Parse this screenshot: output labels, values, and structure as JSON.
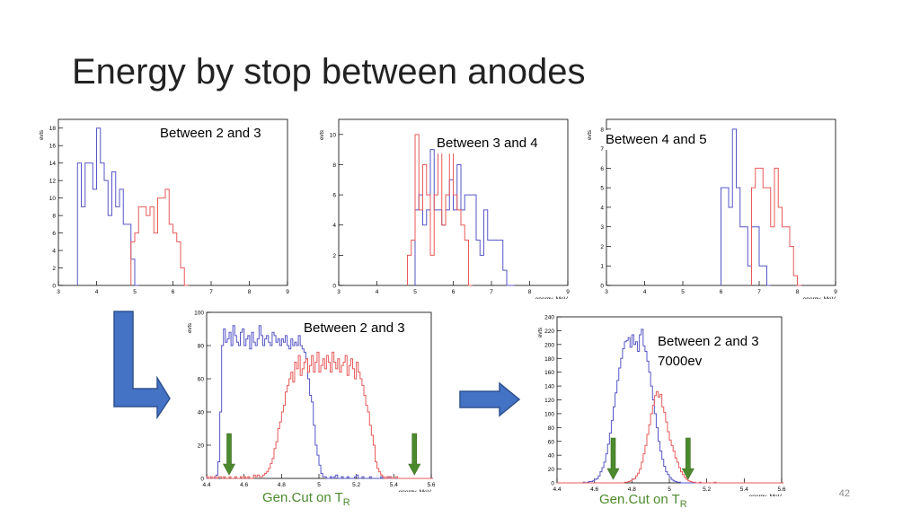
{
  "slide": {
    "title": "Energy by stop between anodes",
    "page_number": "42",
    "gencut_text": "Gen.Cut on T",
    "gencut_sub": "R"
  },
  "colors": {
    "blue": "#5656c8",
    "red": "#e85a5a",
    "arrow_blue": "#4472c4",
    "arrow_green": "#4c8a2e"
  },
  "chart_data": [
    {
      "id": "p1",
      "type": "histogram",
      "title": "Between 2 and 3",
      "ylabel": "evts",
      "xlabel": "",
      "xlim": [
        3,
        9
      ],
      "ylim": [
        0,
        19
      ],
      "xticks": [
        "3",
        "4",
        "5",
        "6",
        "7",
        "8",
        "9"
      ],
      "yticks": [
        "0",
        "2",
        "4",
        "6",
        "8",
        "10",
        "12",
        "14",
        "16",
        "18"
      ],
      "bin_width": 0.1,
      "series": [
        {
          "name": "blue",
          "x0": 3.5,
          "values": [
            14,
            9,
            14,
            14,
            11,
            18,
            14,
            12,
            8,
            13,
            9,
            11,
            7,
            7,
            3,
            0
          ]
        },
        {
          "name": "red",
          "x0": 4.9,
          "values": [
            5,
            6,
            9,
            9,
            8,
            9,
            6,
            10,
            10,
            11,
            7,
            6,
            5,
            2,
            0
          ]
        }
      ]
    },
    {
      "id": "p2",
      "type": "histogram",
      "title": "Between 3 and 4",
      "ylabel": "evts",
      "xlabel": "energy, MeV",
      "xlim": [
        3,
        9
      ],
      "ylim": [
        0,
        11
      ],
      "xticks": [
        "3",
        "4",
        "5",
        "6",
        "7",
        "8",
        "9"
      ],
      "yticks": [
        "0",
        "2",
        "4",
        "6",
        "8",
        "10"
      ],
      "bin_width": 0.1,
      "series": [
        {
          "name": "blue",
          "x0": 5.0,
          "values": [
            5,
            6,
            4,
            5,
            9,
            5,
            5,
            4,
            5,
            7,
            5,
            8,
            5,
            6,
            6,
            6,
            3,
            2,
            5,
            3,
            3,
            3,
            3,
            1,
            0,
            0
          ]
        },
        {
          "name": "red",
          "x0": 4.8,
          "values": [
            2,
            3,
            10,
            5,
            8,
            6,
            2,
            6,
            10,
            4,
            6,
            9,
            6,
            5,
            4,
            3,
            0
          ]
        }
      ]
    },
    {
      "id": "p3",
      "type": "histogram",
      "title": "Between 4 and 5",
      "ylabel": "evts",
      "xlabel": "energy, MeV",
      "xlim": [
        3,
        9
      ],
      "ylim": [
        0,
        8.5
      ],
      "xticks": [
        "3",
        "4",
        "5",
        "6",
        "7",
        "8",
        "9"
      ],
      "yticks": [
        "0",
        "1",
        "2",
        "3",
        "4",
        "5",
        "6",
        "7",
        "8"
      ],
      "bin_width": 0.1,
      "series": [
        {
          "name": "blue",
          "x0": 6.0,
          "values": [
            5,
            5,
            4,
            8,
            5,
            3,
            3,
            1,
            3,
            3,
            1,
            1,
            0
          ]
        },
        {
          "name": "red",
          "x0": 6.8,
          "values": [
            5,
            6,
            6,
            5,
            5,
            3,
            6,
            4,
            3,
            3,
            2,
            0.5,
            0
          ]
        }
      ]
    },
    {
      "id": "p4",
      "type": "histogram",
      "title": "Between 2 and 3",
      "ylabel": "evts",
      "xlabel": "energy, MeV",
      "xlim": [
        4.4,
        5.6
      ],
      "ylim": [
        0,
        100
      ],
      "xticks": [
        "4.4",
        "4.6",
        "4.8",
        "5",
        "5.2",
        "5.4",
        "5.6"
      ],
      "yticks": [
        "0",
        "20",
        "40",
        "60",
        "80",
        "100"
      ],
      "bin_width": 0.01,
      "series": [
        {
          "name": "blue",
          "x0": 4.4,
          "values": [
            0,
            0,
            0,
            0,
            0,
            2,
            10,
            40,
            80,
            90,
            82,
            84,
            88,
            80,
            92,
            86,
            82,
            80,
            88,
            90,
            80,
            84,
            86,
            78,
            88,
            82,
            80,
            84,
            92,
            86,
            80,
            84,
            86,
            82,
            80,
            88,
            86,
            82,
            84,
            80,
            84,
            82,
            86,
            80,
            78,
            84,
            80,
            82,
            80,
            86,
            80,
            78,
            76,
            72,
            60,
            50,
            46,
            32,
            20,
            14,
            8,
            3,
            1,
            1,
            0,
            0,
            1,
            0,
            1,
            2,
            0,
            0,
            1,
            0,
            0,
            1,
            0,
            0,
            0,
            1,
            2,
            0,
            0,
            1,
            0,
            0,
            0,
            1,
            0,
            0,
            0,
            0,
            0,
            1,
            0,
            0,
            0,
            1,
            0,
            0,
            0,
            0,
            0,
            0,
            0,
            0,
            0,
            0,
            0,
            0,
            0,
            0,
            0,
            0,
            0,
            0,
            0,
            0,
            0,
            0,
            0
          ]
        },
        {
          "name": "red",
          "x0": 4.4,
          "values": [
            1,
            0,
            1,
            0,
            1,
            0,
            1,
            1,
            0,
            1,
            0,
            0,
            1,
            0,
            0,
            1,
            0,
            0,
            1,
            0,
            1,
            0,
            1,
            0,
            0,
            2,
            1,
            2,
            1,
            1,
            2,
            3,
            4,
            6,
            9,
            12,
            18,
            22,
            30,
            34,
            40,
            44,
            52,
            56,
            60,
            64,
            58,
            70,
            66,
            74,
            62,
            66,
            70,
            72,
            64,
            68,
            74,
            64,
            70,
            76,
            64,
            68,
            72,
            66,
            74,
            70,
            64,
            76,
            70,
            66,
            72,
            64,
            68,
            70,
            74,
            62,
            68,
            72,
            66,
            60,
            70,
            64,
            60,
            56,
            50,
            44,
            40,
            32,
            26,
            20,
            10,
            6,
            4,
            2,
            1,
            0,
            1,
            0,
            1,
            0,
            0,
            1,
            0,
            0,
            0,
            0,
            0,
            0,
            0,
            0,
            0,
            0,
            0,
            0,
            0,
            0,
            0,
            0,
            0,
            0,
            0
          ]
        }
      ],
      "arrows_at": [
        4.52,
        5.51
      ]
    },
    {
      "id": "p5",
      "type": "histogram",
      "title": "Between 2 and 3",
      "subtitle": "7000ev",
      "ylabel": "evts",
      "xlabel": "energy, MeV",
      "xlim": [
        4.4,
        5.6
      ],
      "ylim": [
        0,
        240
      ],
      "xticks": [
        "4.4",
        "4.6",
        "4.8",
        "5",
        "5.2",
        "5.4",
        "5.6"
      ],
      "yticks": [
        "0",
        "20",
        "40",
        "60",
        "80",
        "100",
        "120",
        "140",
        "160",
        "180",
        "200",
        "220",
        "240"
      ],
      "bin_width": 0.01,
      "series": [
        {
          "name": "blue",
          "x0": 4.4,
          "values": [
            0,
            0,
            0,
            0,
            0,
            0,
            0,
            0,
            0,
            0,
            0,
            0,
            0,
            0,
            1,
            0,
            1,
            2,
            2,
            3,
            5,
            6,
            10,
            16,
            22,
            30,
            42,
            56,
            72,
            90,
            110,
            130,
            148,
            166,
            180,
            194,
            204,
            206,
            210,
            196,
            214,
            200,
            204,
            190,
            214,
            222,
            198,
            190,
            176,
            160,
            140,
            120,
            100,
            80,
            60,
            46,
            34,
            24,
            16,
            12,
            8,
            5,
            3,
            2,
            1,
            1,
            0,
            0,
            0,
            0,
            0,
            0,
            0,
            0,
            0,
            0,
            0,
            0,
            0,
            0,
            0,
            0,
            0,
            0,
            0,
            0,
            0,
            0,
            0,
            0,
            0,
            0,
            0,
            0,
            0,
            0,
            0,
            0,
            0,
            0,
            0,
            0,
            0,
            0,
            0,
            0,
            0,
            0,
            0,
            0,
            0,
            0,
            0,
            0,
            0,
            0,
            0,
            0,
            0,
            0,
            0
          ]
        },
        {
          "name": "red",
          "x0": 4.4,
          "values": [
            0,
            0,
            0,
            0,
            0,
            0,
            0,
            0,
            0,
            0,
            0,
            0,
            0,
            0,
            0,
            0,
            0,
            0,
            0,
            0,
            0,
            0,
            0,
            0,
            0,
            0,
            0,
            0,
            0,
            0,
            0,
            0,
            0,
            0,
            0,
            0,
            1,
            1,
            2,
            3,
            5,
            6,
            10,
            14,
            20,
            30,
            42,
            54,
            70,
            84,
            100,
            112,
            126,
            132,
            124,
            128,
            110,
            102,
            88,
            74,
            62,
            54,
            46,
            36,
            30,
            22,
            16,
            12,
            8,
            5,
            3,
            2,
            1,
            1,
            0,
            0,
            1,
            0,
            0,
            0,
            0,
            0,
            0,
            0,
            1,
            0,
            0,
            0,
            0,
            0,
            0,
            0,
            0,
            0,
            0,
            0,
            0,
            0,
            0,
            0,
            0,
            0,
            0,
            0,
            0,
            0,
            0,
            0,
            0,
            0,
            0,
            0,
            0,
            0,
            0,
            0,
            0,
            0,
            0,
            0,
            0
          ]
        }
      ],
      "arrows_at": [
        4.7,
        5.1
      ]
    }
  ]
}
